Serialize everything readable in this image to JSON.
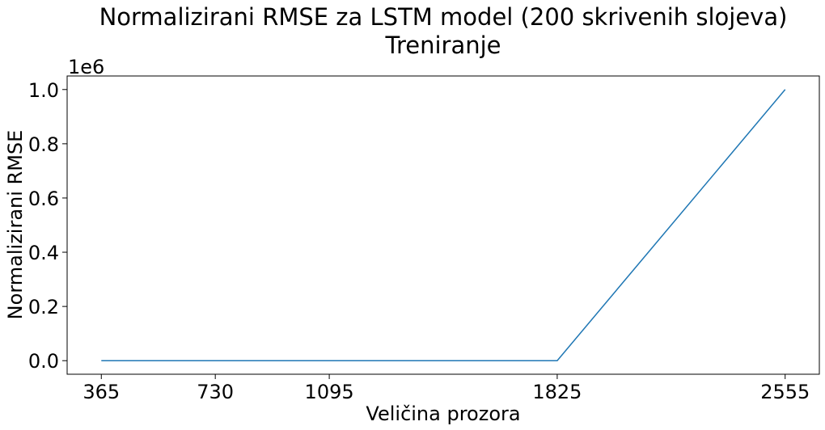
{
  "chart_data": {
    "type": "line",
    "title": "Normalizirani RMSE za LSTM model (200 skrivenih slojeva)",
    "subtitle": "Treniranje",
    "xlabel": "Veličina prozora",
    "ylabel": "Normalizirani RMSE",
    "y_offset_label": "1e6",
    "x_ticks": [
      365,
      730,
      1095,
      1825,
      2555
    ],
    "x_tick_labels": [
      "365",
      "730",
      "1095",
      "1825",
      "2555"
    ],
    "y_ticks": [
      0,
      200000,
      400000,
      600000,
      800000,
      1000000
    ],
    "y_tick_labels": [
      "0.0",
      "0.2",
      "0.4",
      "0.6",
      "0.8",
      "1.0"
    ],
    "xlim": [
      255.5,
      2664.5
    ],
    "ylim": [
      -50000,
      1050000
    ],
    "grid": false,
    "series": [
      {
        "color": "#1f77b4",
        "x": [
          365,
          730,
          1095,
          1825,
          2555
        ],
        "y": [
          0,
          0,
          0,
          0,
          1000000
        ]
      }
    ]
  }
}
